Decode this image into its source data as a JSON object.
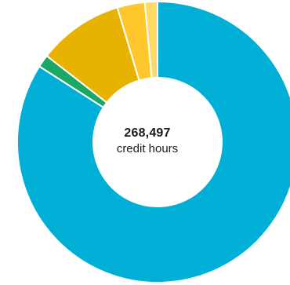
{
  "chart_data": {
    "type": "pie",
    "variant": "donut",
    "center": {
      "value": "268,497",
      "unit": "credit hours"
    },
    "slices": [
      {
        "share": 0.8322,
        "color": "#00afd6"
      },
      {
        "share": 0.0144,
        "color": "#1aa864"
      },
      {
        "share": 0.0976,
        "color": "#e8b300"
      },
      {
        "share": 0.0314,
        "color": "#ffc72c"
      },
      {
        "share": 0.0144,
        "color": "#ffd966"
      }
    ],
    "total_credit_hours": 268497
  }
}
